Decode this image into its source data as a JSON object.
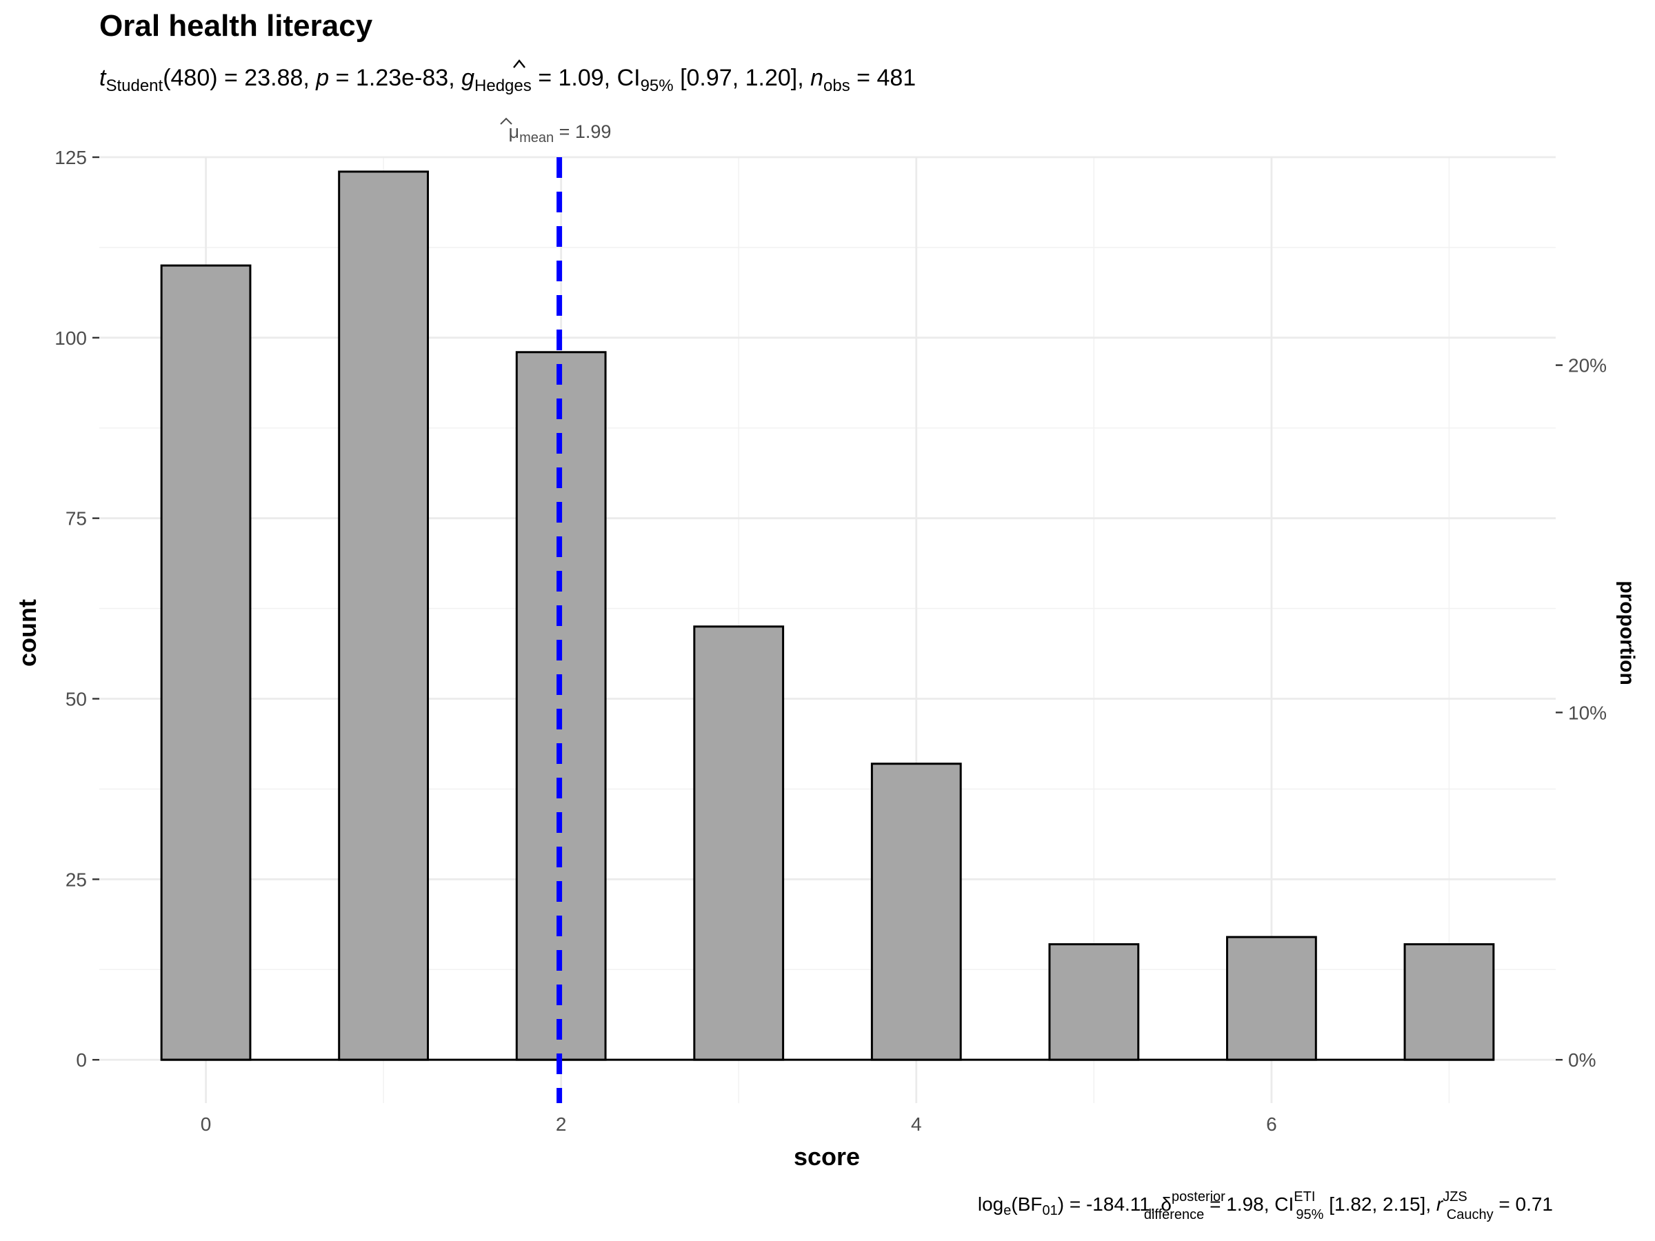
{
  "chart_data": {
    "type": "bar",
    "title": "Oral health literacy",
    "subtitle": {
      "t_label": "t",
      "t_sub": "Student",
      "df": "(480) = 23.88, ",
      "p_label": "p",
      "p_value": " = 1.23e-83, ",
      "g_label": "g",
      "g_sub": "Hedges",
      "g_value": " = 1.09, CI",
      "ci_sub": "95%",
      "ci_value": " [0.97, 1.20], ",
      "n_label": "n",
      "n_sub": "obs",
      "n_value": " = 481"
    },
    "caption": {
      "bf_label": "log",
      "bf_sub": "e",
      "bf_mid": "(BF",
      "bf_sub2": "01",
      "bf_value": ") = -184.11, ",
      "delta_label": "δ",
      "delta_sup": "posterior",
      "delta_sub": "difference",
      "delta_value": " = 1.98, CI",
      "ci_sup": "ETI",
      "ci_sub": "95%",
      "ci_value": " [1.82, 2.15], ",
      "r_label": "r",
      "r_sup": "JZS",
      "r_sub": "Cauchy",
      "r_value": " = 0.71"
    },
    "mean_annotation": {
      "label": "μ",
      "sub": "mean",
      "value_text": " = 1.99",
      "value": 1.99,
      "line_color": "#0000ff"
    },
    "xlabel": "score",
    "ylabel": "count",
    "y2label": "proportion",
    "x": [
      0,
      1,
      2,
      3,
      4,
      5,
      6,
      7
    ],
    "values": [
      110,
      123,
      98,
      60,
      41,
      16,
      17,
      16
    ],
    "xlim": [
      -0.6,
      7.6
    ],
    "ylim": [
      -6,
      125
    ],
    "x_ticks": [
      0,
      2,
      4,
      6
    ],
    "x_tick_labels": [
      "0",
      "2",
      "4",
      "6"
    ],
    "y_ticks": [
      0,
      25,
      50,
      75,
      100,
      125
    ],
    "y_tick_labels": [
      "0",
      "25",
      "50",
      "75",
      "100",
      "125"
    ],
    "y2_ticks": [
      0,
      0.1,
      0.2
    ],
    "y2_tick_labels": [
      "0%",
      "10%",
      "20%"
    ],
    "n_total": 481,
    "bar_color": "#a6a6a6",
    "grid": true
  }
}
